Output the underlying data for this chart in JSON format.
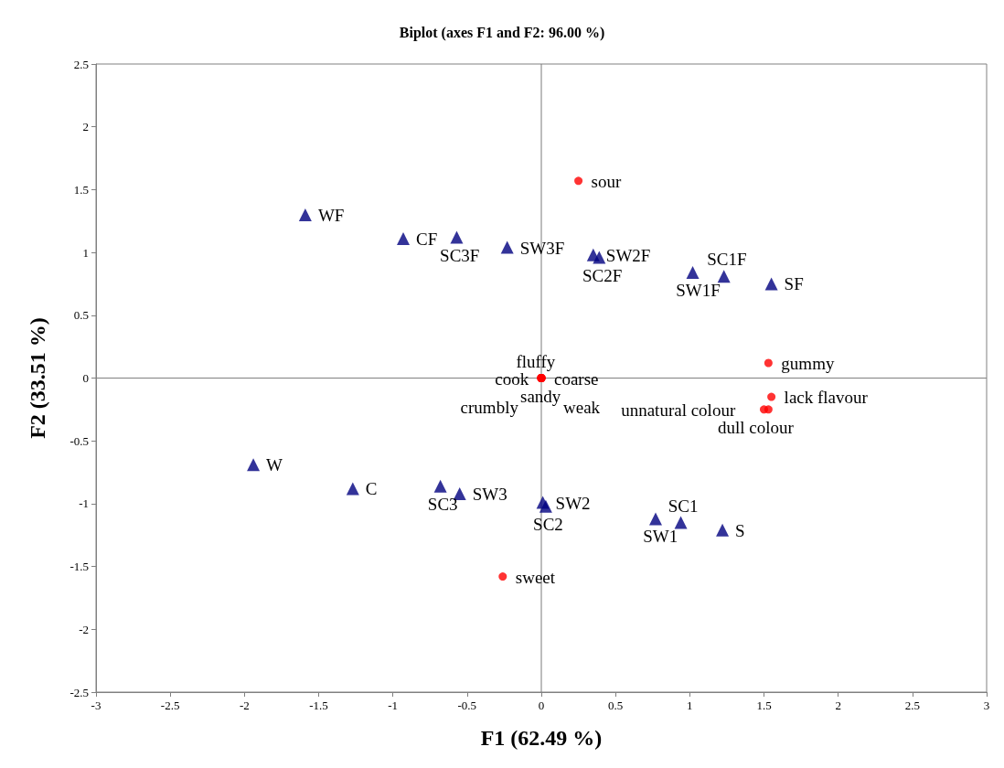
{
  "chart_data": {
    "type": "scatter",
    "title": "Biplot (axes F1 and F2: 96.00 %)",
    "xlabel": "F1 (62.49 %)",
    "ylabel": "F2 (33.51 %)",
    "xlim": [
      -3,
      3
    ],
    "xticks": [
      -3,
      -2.5,
      -2,
      -1.5,
      -1,
      -0.5,
      0,
      0.5,
      1,
      1.5,
      2,
      2.5,
      3
    ],
    "ylim": [
      -2.5,
      2.5
    ],
    "yticks": [
      -2.5,
      -2,
      -1.5,
      -1,
      -0.5,
      0,
      0.5,
      1,
      1.5,
      2,
      2.5
    ],
    "grid": false,
    "ref_lines": [
      {
        "axis": "x",
        "value": 0,
        "color": "#7a7a7a"
      },
      {
        "axis": "y",
        "value": 0,
        "color": "#808080"
      }
    ],
    "series": [
      {
        "marker": "triangle",
        "color": "#000080",
        "x": [
          -1.59,
          -0.93,
          -0.57,
          -0.23,
          0.35,
          0.39,
          1.02,
          1.23,
          1.55,
          -1.94,
          -1.27,
          -0.68,
          -0.55,
          0.01,
          0.03,
          0.77,
          0.94,
          1.22
        ],
        "values": [
          1.3,
          1.11,
          1.12,
          1.04,
          0.98,
          0.96,
          0.84,
          0.81,
          0.75,
          -0.69,
          -0.88,
          -0.86,
          -0.92,
          -0.99,
          -1.02,
          -1.12,
          -1.15,
          -1.21
        ]
      },
      {
        "marker": "circle",
        "color": "#ff0000",
        "x": [
          0.25,
          0,
          0,
          0,
          0,
          0,
          0,
          1.53,
          1.55,
          1.5,
          1.53,
          -0.26
        ],
        "values": [
          1.57,
          0,
          0,
          0,
          0,
          0,
          0,
          0.12,
          -0.15,
          -0.25,
          -0.25,
          -1.58
        ]
      }
    ],
    "annotations": [
      {
        "text": "WF",
        "x": -1.59,
        "y": 1.3
      },
      {
        "text": "CF",
        "x": -0.93,
        "y": 1.11
      },
      {
        "text": "SC3F",
        "x": -0.57,
        "y": 1.12
      },
      {
        "text": "SW3F",
        "x": -0.23,
        "y": 1.04
      },
      {
        "text": "SW2F",
        "x": 0.35,
        "y": 0.98
      },
      {
        "text": "SC2F",
        "x": 0.39,
        "y": 0.96
      },
      {
        "text": "SW1F",
        "x": 1.02,
        "y": 0.84
      },
      {
        "text": "SC1F",
        "x": 1.23,
        "y": 0.81
      },
      {
        "text": "SF",
        "x": 1.55,
        "y": 0.75
      },
      {
        "text": "sour",
        "x": 0.25,
        "y": 1.57
      },
      {
        "text": "coarse",
        "x": 0,
        "y": 0
      },
      {
        "text": "sandy",
        "x": 0,
        "y": 0
      },
      {
        "text": "fluffy",
        "x": 0,
        "y": 0
      },
      {
        "text": "cook",
        "x": 0,
        "y": 0
      },
      {
        "text": "weak",
        "x": 0,
        "y": 0
      },
      {
        "text": "crumbly",
        "x": 0,
        "y": 0
      },
      {
        "text": "gummy",
        "x": 1.53,
        "y": 0.12
      },
      {
        "text": "lack flavour",
        "x": 1.55,
        "y": -0.15
      },
      {
        "text": "dull colour",
        "x": 1.5,
        "y": -0.25
      },
      {
        "text": "unnatural colour",
        "x": 1.53,
        "y": -0.25
      },
      {
        "text": "W",
        "x": -1.94,
        "y": -0.69
      },
      {
        "text": "C",
        "x": -1.27,
        "y": -0.88
      },
      {
        "text": "SC3",
        "x": -0.68,
        "y": -0.86
      },
      {
        "text": "SW3",
        "x": -0.55,
        "y": -0.92
      },
      {
        "text": "SW2",
        "x": 0.01,
        "y": -0.99
      },
      {
        "text": "SC2",
        "x": 0.03,
        "y": -1.02
      },
      {
        "text": "SW1",
        "x": 0.77,
        "y": -1.12
      },
      {
        "text": "SC1",
        "x": 0.94,
        "y": -1.15
      },
      {
        "text": "S",
        "x": 1.22,
        "y": -1.21
      },
      {
        "text": "sweet",
        "x": -0.26,
        "y": -1.58
      }
    ]
  }
}
